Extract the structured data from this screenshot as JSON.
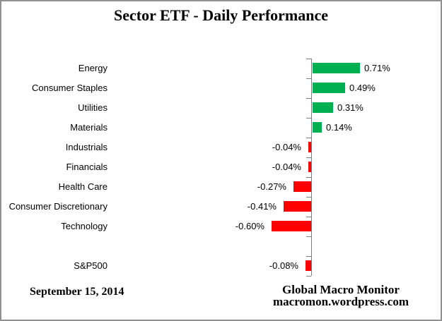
{
  "chart_data": {
    "type": "bar",
    "orientation": "horizontal",
    "title": "Sector ETF - Daily Performance",
    "xlabel": "",
    "ylabel": "",
    "grid": false,
    "legend": false,
    "value_unit": "%",
    "categories": [
      "Energy",
      "Consumer Staples",
      "Utilities",
      "Materials",
      "Industrials",
      "Financials",
      "Health Care",
      "Consumer Discretionary",
      "Technology",
      "",
      "S&P500"
    ],
    "values": [
      0.71,
      0.49,
      0.31,
      0.14,
      -0.04,
      -0.04,
      -0.27,
      -0.41,
      -0.6,
      null,
      -0.08
    ],
    "value_labels": [
      "0.71%",
      "0.49%",
      "0.31%",
      "0.14%",
      "-0.04%",
      "-0.04%",
      "-0.27%",
      "-0.41%",
      "-0.60%",
      "",
      "-0.08%"
    ],
    "positive_color": "#00B050",
    "negative_color": "#FF0000",
    "axis_color": "#808080",
    "text_color": "#000000"
  },
  "footer": {
    "date": "September 15, 2014",
    "source_line1": "Global Macro Monitor",
    "source_line2": "macromon.wordpress.com"
  }
}
